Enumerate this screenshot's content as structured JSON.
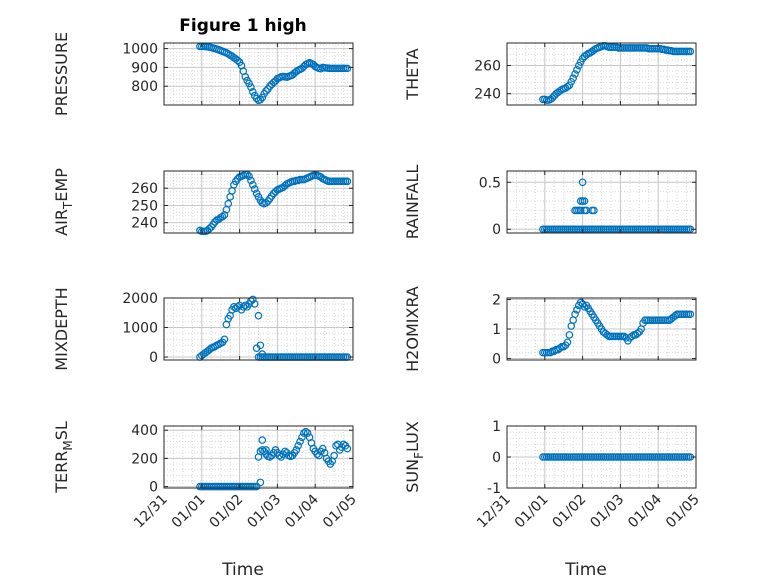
{
  "figure_title": "Figure 1 high",
  "x_axis_label": "Time",
  "x_tick_labels": [
    "12/31",
    "01/01",
    "01/02",
    "01/03",
    "01/04",
    "01/05"
  ],
  "colors": {
    "marker": "#0072BD",
    "axes": "#262626",
    "grid": "#d9d9d9"
  },
  "chart_data": [
    {
      "type": "scatter",
      "ylabel": "PRESSURE",
      "yticks": [
        800,
        900,
        1000
      ],
      "ylim": [
        700,
        1030
      ],
      "xlim_days": [
        -1,
        4
      ],
      "grid": true,
      "x": [
        -0.05,
        0.0,
        0.05,
        0.1,
        0.15,
        0.2,
        0.25,
        0.3,
        0.35,
        0.4,
        0.45,
        0.5,
        0.55,
        0.6,
        0.65,
        0.7,
        0.75,
        0.8,
        0.85,
        0.9,
        0.95,
        1.0,
        1.05,
        1.1,
        1.15,
        1.2,
        1.25,
        1.3,
        1.35,
        1.4,
        1.45,
        1.5,
        1.55,
        1.6,
        1.65,
        1.7,
        1.75,
        1.8,
        1.85,
        1.9,
        1.95,
        2.0,
        2.05,
        2.1,
        2.15,
        2.2,
        2.25,
        2.3,
        2.35,
        2.4,
        2.45,
        2.5,
        2.55,
        2.6,
        2.65,
        2.7,
        2.75,
        2.8,
        2.85,
        2.9,
        2.95,
        3.0,
        3.05,
        3.1,
        3.15,
        3.2,
        3.25,
        3.3,
        3.35,
        3.4,
        3.45,
        3.5,
        3.55,
        3.6,
        3.65,
        3.7,
        3.75,
        3.8,
        3.85
      ],
      "y": [
        1012,
        1012,
        1012,
        1011,
        1010,
        1008,
        1006,
        1003,
        1000,
        997,
        994,
        990,
        986,
        982,
        978,
        972,
        966,
        960,
        952,
        945,
        937,
        928,
        910,
        880,
        850,
        830,
        815,
        795,
        770,
        750,
        735,
        725,
        728,
        740,
        760,
        775,
        785,
        800,
        810,
        820,
        828,
        840,
        845,
        850,
        852,
        850,
        848,
        852,
        856,
        860,
        870,
        878,
        885,
        890,
        895,
        905,
        915,
        920,
        925,
        920,
        915,
        905,
        900,
        895,
        893,
        900,
        898,
        897,
        896,
        895,
        895,
        895,
        895,
        895,
        895,
        895,
        895,
        895,
        895
      ]
    },
    {
      "type": "scatter",
      "ylabel": "THETA",
      "yticks": [
        240,
        260
      ],
      "ylim": [
        232,
        276
      ],
      "xlim_days": [
        -1,
        4
      ],
      "grid": true,
      "x": [
        -0.05,
        0.0,
        0.05,
        0.1,
        0.15,
        0.2,
        0.25,
        0.3,
        0.35,
        0.4,
        0.45,
        0.5,
        0.55,
        0.6,
        0.65,
        0.7,
        0.75,
        0.8,
        0.85,
        0.9,
        0.95,
        1.0,
        1.05,
        1.1,
        1.15,
        1.2,
        1.25,
        1.3,
        1.35,
        1.4,
        1.45,
        1.5,
        1.55,
        1.6,
        1.65,
        1.7,
        1.75,
        1.8,
        1.85,
        1.9,
        1.95,
        2.0,
        2.05,
        2.1,
        2.15,
        2.2,
        2.25,
        2.3,
        2.35,
        2.4,
        2.45,
        2.5,
        2.55,
        2.6,
        2.65,
        2.7,
        2.75,
        2.8,
        2.85,
        2.9,
        2.95,
        3.0,
        3.05,
        3.1,
        3.15,
        3.2,
        3.25,
        3.3,
        3.35,
        3.4,
        3.45,
        3.5,
        3.55,
        3.6,
        3.65,
        3.7,
        3.75,
        3.8,
        3.85
      ],
      "y": [
        236,
        236,
        235.5,
        235.5,
        236,
        237,
        238.5,
        240,
        241,
        242,
        243,
        243.5,
        244,
        245,
        246,
        248.5,
        251,
        254,
        257,
        260,
        262.5,
        265,
        266.5,
        267.5,
        268.5,
        269,
        270,
        271,
        272,
        272.5,
        273,
        273.5,
        274,
        274,
        273.5,
        273,
        273,
        273,
        273,
        273,
        272.5,
        272.5,
        272.5,
        272.5,
        272.5,
        272.5,
        272.5,
        272.5,
        272.5,
        272.5,
        272.5,
        272.5,
        272.5,
        272.5,
        272.5,
        272.5,
        272,
        272,
        272,
        272,
        272,
        272,
        272,
        271.5,
        271.5,
        271,
        271,
        270.5,
        270.5,
        270,
        270,
        270,
        270,
        270,
        270,
        270,
        270,
        270,
        270
      ]
    },
    {
      "type": "scatter",
      "ylabel": "AIR_TEMP",
      "yticks": [
        240,
        250,
        260
      ],
      "ylim": [
        234,
        270
      ],
      "xlim_days": [
        -1,
        4
      ],
      "grid": true,
      "x": [
        -0.05,
        0.0,
        0.05,
        0.1,
        0.15,
        0.2,
        0.25,
        0.3,
        0.35,
        0.4,
        0.45,
        0.5,
        0.55,
        0.6,
        0.65,
        0.7,
        0.75,
        0.8,
        0.85,
        0.9,
        0.95,
        1.0,
        1.05,
        1.1,
        1.15,
        1.2,
        1.25,
        1.3,
        1.35,
        1.4,
        1.45,
        1.5,
        1.55,
        1.6,
        1.65,
        1.7,
        1.75,
        1.8,
        1.85,
        1.9,
        1.95,
        2.0,
        2.05,
        2.1,
        2.15,
        2.2,
        2.25,
        2.3,
        2.35,
        2.4,
        2.45,
        2.5,
        2.55,
        2.6,
        2.65,
        2.7,
        2.75,
        2.8,
        2.85,
        2.9,
        2.95,
        3.0,
        3.05,
        3.1,
        3.15,
        3.2,
        3.25,
        3.3,
        3.35,
        3.4,
        3.45,
        3.5,
        3.55,
        3.6,
        3.65,
        3.7,
        3.75,
        3.8,
        3.85
      ],
      "y": [
        235.5,
        235,
        235,
        235,
        235.5,
        236.5,
        237.5,
        239,
        240.5,
        241.5,
        242,
        243,
        243.5,
        244.5,
        247.5,
        251,
        255,
        258.5,
        262,
        264,
        265.5,
        266.5,
        267,
        267.5,
        268,
        268,
        267,
        264.5,
        262,
        259.5,
        257,
        255,
        253,
        251.5,
        251,
        251.5,
        252.5,
        254,
        255.5,
        257,
        258,
        259,
        259.5,
        260,
        260.5,
        261.5,
        262.5,
        263,
        263.5,
        264,
        264,
        264.5,
        264.5,
        265,
        265,
        265,
        265.5,
        266,
        266.5,
        267,
        267.5,
        267.5,
        267.5,
        267,
        266.5,
        265.5,
        265,
        264.5,
        264,
        264,
        264,
        264,
        264,
        264,
        264,
        264,
        264,
        264,
        264
      ]
    },
    {
      "type": "scatter",
      "ylabel": "RAINFALL",
      "yticks": [
        0,
        0.5
      ],
      "ylim": [
        -0.04,
        0.62
      ],
      "xlim_days": [
        -1,
        4
      ],
      "grid": true,
      "x": [
        -0.05,
        0.0,
        0.05,
        0.1,
        0.15,
        0.2,
        0.25,
        0.3,
        0.35,
        0.4,
        0.45,
        0.5,
        0.55,
        0.6,
        0.65,
        0.7,
        0.75,
        0.8,
        0.85,
        0.9,
        0.95,
        1.0,
        1.05,
        1.1,
        1.15,
        1.2,
        1.25,
        1.3,
        1.35,
        1.4,
        1.45,
        1.5,
        1.55,
        1.6,
        1.65,
        1.7,
        1.75,
        1.8,
        1.85,
        1.9,
        1.95,
        2.0,
        2.05,
        2.1,
        2.15,
        2.2,
        2.25,
        2.3,
        2.35,
        2.4,
        2.45,
        2.5,
        2.55,
        2.6,
        2.65,
        2.7,
        2.75,
        2.8,
        2.85,
        2.9,
        2.95,
        3.0,
        3.05,
        3.1,
        3.15,
        3.2,
        3.25,
        3.3,
        3.35,
        3.4,
        3.45,
        3.5,
        3.55,
        3.6,
        3.65,
        3.7,
        3.75,
        3.8,
        3.85,
        0.8,
        0.85,
        0.9,
        0.95,
        1.0,
        1.05,
        1.1,
        1.25,
        1.3,
        0.95,
        1.05,
        1.0
      ],
      "y": [
        0,
        0,
        0,
        0,
        0,
        0,
        0,
        0,
        0,
        0,
        0,
        0,
        0,
        0,
        0,
        0,
        0,
        0,
        0,
        0,
        0,
        0,
        0,
        0,
        0,
        0,
        0,
        0,
        0,
        0,
        0,
        0,
        0,
        0,
        0,
        0,
        0,
        0,
        0,
        0,
        0,
        0,
        0,
        0,
        0,
        0,
        0,
        0,
        0,
        0,
        0,
        0,
        0,
        0,
        0,
        0,
        0,
        0,
        0,
        0,
        0,
        0,
        0,
        0,
        0,
        0,
        0,
        0,
        0,
        0,
        0,
        0,
        0,
        0,
        0,
        0,
        0,
        0,
        0,
        0.2,
        0.2,
        0.2,
        0.3,
        0.3,
        0.3,
        0.2,
        0.2,
        0.2,
        0.2,
        0.2,
        0.5
      ]
    },
    {
      "type": "scatter",
      "ylabel": "MIXDEPTH",
      "yticks": [
        0,
        1000,
        2000
      ],
      "ylim": [
        -100,
        2000
      ],
      "xlim_days": [
        -1,
        4
      ],
      "grid": true,
      "x": [
        -0.05,
        0.0,
        0.05,
        0.1,
        0.15,
        0.2,
        0.25,
        0.3,
        0.35,
        0.4,
        0.45,
        0.5,
        0.55,
        0.6,
        0.65,
        0.7,
        0.75,
        0.8,
        0.85,
        0.9,
        0.95,
        1.0,
        1.05,
        1.1,
        1.15,
        1.2,
        1.25,
        1.3,
        1.35,
        1.4,
        1.45,
        1.5,
        1.55,
        1.6,
        1.65,
        1.7,
        1.75,
        1.8,
        1.85,
        1.9,
        1.95,
        2.0,
        2.05,
        2.1,
        2.15,
        2.2,
        2.25,
        2.3,
        2.35,
        2.4,
        2.45,
        2.5,
        2.55,
        2.6,
        2.65,
        2.7,
        2.75,
        2.8,
        2.85,
        2.9,
        2.95,
        3.0,
        3.05,
        3.1,
        3.15,
        3.2,
        3.25,
        3.3,
        3.35,
        3.4,
        3.45,
        3.5,
        3.55,
        3.6,
        3.65,
        3.7,
        3.75,
        3.8,
        3.85,
        1.5,
        1.55,
        1.6
      ],
      "y": [
        0,
        50,
        100,
        150,
        200,
        250,
        300,
        330,
        360,
        400,
        430,
        470,
        500,
        600,
        1100,
        1300,
        1400,
        1600,
        1700,
        1650,
        1700,
        1750,
        1600,
        1700,
        1750,
        1700,
        1800,
        1900,
        1950,
        1800,
        300,
        0,
        0,
        0,
        0,
        0,
        0,
        0,
        0,
        0,
        0,
        0,
        0,
        0,
        0,
        0,
        0,
        0,
        0,
        0,
        0,
        0,
        0,
        0,
        0,
        0,
        0,
        0,
        0,
        0,
        0,
        0,
        0,
        0,
        0,
        0,
        0,
        0,
        0,
        0,
        0,
        0,
        0,
        0,
        0,
        0,
        0,
        0,
        0,
        1400,
        400,
        100
      ]
    },
    {
      "type": "scatter",
      "ylabel": "H2OMIXRA",
      "yticks": [
        0,
        1,
        2
      ],
      "ylim": [
        -0.05,
        2.05
      ],
      "xlim_days": [
        -1,
        4
      ],
      "grid": true,
      "x": [
        -0.05,
        0.0,
        0.05,
        0.1,
        0.15,
        0.2,
        0.25,
        0.3,
        0.35,
        0.4,
        0.45,
        0.5,
        0.55,
        0.6,
        0.65,
        0.7,
        0.75,
        0.8,
        0.85,
        0.9,
        0.95,
        1.0,
        1.05,
        1.1,
        1.15,
        1.2,
        1.25,
        1.3,
        1.35,
        1.4,
        1.45,
        1.5,
        1.55,
        1.6,
        1.65,
        1.7,
        1.75,
        1.8,
        1.85,
        1.9,
        1.95,
        2.0,
        2.05,
        2.1,
        2.15,
        2.2,
        2.25,
        2.3,
        2.35,
        2.4,
        2.45,
        2.5,
        2.55,
        2.6,
        2.65,
        2.7,
        2.75,
        2.8,
        2.85,
        2.9,
        2.95,
        3.0,
        3.05,
        3.1,
        3.15,
        3.2,
        3.25,
        3.3,
        3.35,
        3.4,
        3.45,
        3.5,
        3.55,
        3.6,
        3.65,
        3.7,
        3.75,
        3.8,
        3.85
      ],
      "y": [
        0.2,
        0.2,
        0.2,
        0.2,
        0.2,
        0.25,
        0.25,
        0.3,
        0.3,
        0.35,
        0.4,
        0.4,
        0.45,
        0.55,
        0.8,
        1.1,
        1.3,
        1.5,
        1.65,
        1.8,
        1.9,
        1.85,
        1.75,
        1.8,
        1.7,
        1.6,
        1.5,
        1.4,
        1.3,
        1.2,
        1.1,
        1.0,
        0.9,
        0.85,
        0.8,
        0.75,
        0.75,
        0.75,
        0.75,
        0.75,
        0.75,
        0.75,
        0.75,
        0.75,
        0.7,
        0.6,
        0.7,
        0.75,
        0.8,
        0.8,
        0.85,
        0.9,
        1.0,
        1.2,
        1.3,
        1.3,
        1.3,
        1.3,
        1.3,
        1.3,
        1.3,
        1.3,
        1.3,
        1.3,
        1.3,
        1.3,
        1.3,
        1.3,
        1.35,
        1.4,
        1.45,
        1.5,
        1.5,
        1.5,
        1.5,
        1.5,
        1.5,
        1.5,
        1.5
      ]
    },
    {
      "type": "scatter",
      "ylabel": "TERR_MSL",
      "yticks": [
        0,
        200,
        400
      ],
      "ylim": [
        -10,
        430
      ],
      "xlim_days": [
        -1,
        4
      ],
      "grid": true,
      "x": [
        -0.05,
        0.0,
        0.05,
        0.1,
        0.15,
        0.2,
        0.25,
        0.3,
        0.35,
        0.4,
        0.45,
        0.5,
        0.55,
        0.6,
        0.65,
        0.7,
        0.75,
        0.8,
        0.85,
        0.9,
        0.95,
        1.0,
        1.05,
        1.1,
        1.15,
        1.2,
        1.25,
        1.3,
        1.35,
        1.4,
        1.45,
        1.5,
        1.55,
        1.6,
        1.65,
        1.7,
        1.75,
        1.8,
        1.85,
        1.9,
        1.95,
        2.0,
        2.05,
        2.1,
        2.15,
        2.2,
        2.25,
        2.3,
        2.35,
        2.4,
        2.45,
        2.5,
        2.55,
        2.6,
        2.65,
        2.7,
        2.75,
        2.8,
        2.85,
        2.9,
        2.95,
        3.0,
        3.05,
        3.1,
        3.15,
        3.2,
        3.25,
        3.3,
        3.35,
        3.4,
        3.45,
        3.5,
        3.55,
        3.6,
        3.65,
        3.7,
        3.75,
        3.8,
        3.85,
        1.55,
        1.6,
        1.7
      ],
      "y": [
        0,
        0,
        0,
        0,
        0,
        0,
        0,
        0,
        0,
        0,
        0,
        0,
        0,
        0,
        0,
        0,
        0,
        0,
        0,
        0,
        0,
        0,
        0,
        0,
        0,
        0,
        0,
        0,
        0,
        0,
        0,
        210,
        250,
        260,
        250,
        230,
        215,
        210,
        220,
        240,
        260,
        240,
        220,
        210,
        230,
        250,
        240,
        220,
        215,
        220,
        240,
        260,
        290,
        320,
        350,
        380,
        390,
        380,
        350,
        310,
        270,
        250,
        230,
        220,
        250,
        270,
        240,
        200,
        180,
        160,
        180,
        220,
        290,
        300,
        260,
        280,
        300,
        290,
        270,
        30,
        330,
        260
      ]
    },
    {
      "type": "scatter",
      "ylabel": "SUN_FLUX",
      "yticks": [
        -1,
        0,
        1
      ],
      "ylim": [
        -1,
        1
      ],
      "xlim_days": [
        -1,
        4
      ],
      "grid": true,
      "x": [
        -0.05,
        0.0,
        0.05,
        0.1,
        0.15,
        0.2,
        0.25,
        0.3,
        0.35,
        0.4,
        0.45,
        0.5,
        0.55,
        0.6,
        0.65,
        0.7,
        0.75,
        0.8,
        0.85,
        0.9,
        0.95,
        1.0,
        1.05,
        1.1,
        1.15,
        1.2,
        1.25,
        1.3,
        1.35,
        1.4,
        1.45,
        1.5,
        1.55,
        1.6,
        1.65,
        1.7,
        1.75,
        1.8,
        1.85,
        1.9,
        1.95,
        2.0,
        2.05,
        2.1,
        2.15,
        2.2,
        2.25,
        2.3,
        2.35,
        2.4,
        2.45,
        2.5,
        2.55,
        2.6,
        2.65,
        2.7,
        2.75,
        2.8,
        2.85,
        2.9,
        2.95,
        3.0,
        3.05,
        3.1,
        3.15,
        3.2,
        3.25,
        3.3,
        3.35,
        3.4,
        3.45,
        3.5,
        3.55,
        3.6,
        3.65,
        3.7,
        3.75,
        3.8,
        3.85
      ],
      "y": [
        0,
        0,
        0,
        0,
        0,
        0,
        0,
        0,
        0,
        0,
        0,
        0,
        0,
        0,
        0,
        0,
        0,
        0,
        0,
        0,
        0,
        0,
        0,
        0,
        0,
        0,
        0,
        0,
        0,
        0,
        0,
        0,
        0,
        0,
        0,
        0,
        0,
        0,
        0,
        0,
        0,
        0,
        0,
        0,
        0,
        0,
        0,
        0,
        0,
        0,
        0,
        0,
        0,
        0,
        0,
        0,
        0,
        0,
        0,
        0,
        0,
        0,
        0,
        0,
        0,
        0,
        0,
        0,
        0,
        0,
        0,
        0,
        0,
        0,
        0,
        0,
        0,
        0,
        0
      ]
    }
  ]
}
